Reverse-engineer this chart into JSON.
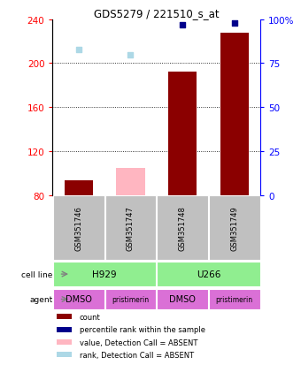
{
  "title": "GDS5279 / 221510_s_at",
  "samples": [
    "GSM351746",
    "GSM351747",
    "GSM351748",
    "GSM351749"
  ],
  "counts": [
    93,
    null,
    192,
    228
  ],
  "counts_absent": [
    null,
    105,
    null,
    null
  ],
  "percentile_ranks": [
    null,
    null,
    97,
    98
  ],
  "percentile_ranks_absent": [
    83,
    80,
    null,
    null
  ],
  "ylim_left": [
    80,
    240
  ],
  "ylim_right": [
    0,
    100
  ],
  "yticks_left": [
    80,
    120,
    160,
    200,
    240
  ],
  "yticks_right": [
    0,
    25,
    50,
    75,
    100
  ],
  "yticklabels_right": [
    "0",
    "25",
    "50",
    "75",
    "100%"
  ],
  "cell_line_labels": [
    "H929",
    "U266"
  ],
  "cell_line_spans": [
    [
      0,
      2
    ],
    [
      2,
      4
    ]
  ],
  "cell_line_color": "#90EE90",
  "agent_labels": [
    "DMSO",
    "pristimerin",
    "DMSO",
    "pristimerin"
  ],
  "agent_color": "#DA70D6",
  "bar_color": "#8B0000",
  "bar_absent_color": "#FFB6C1",
  "dot_color": "#00008B",
  "dot_absent_color": "#ADD8E6",
  "sample_bg_color": "#C0C0C0",
  "legend_items": [
    {
      "color": "#8B0000",
      "label": "count"
    },
    {
      "color": "#00008B",
      "label": "percentile rank within the sample"
    },
    {
      "color": "#FFB6C1",
      "label": "value, Detection Call = ABSENT"
    },
    {
      "color": "#ADD8E6",
      "label": "rank, Detection Call = ABSENT"
    }
  ]
}
